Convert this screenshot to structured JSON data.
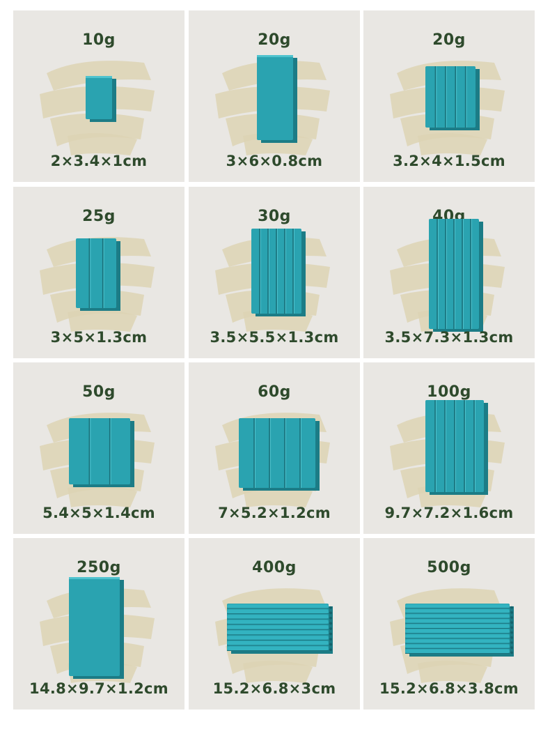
{
  "accent_color": "#2aa3b0",
  "text_color": "#2e4a2c",
  "products": [
    {
      "weight": "10g",
      "dimensions": "2×3.4×1cm",
      "shape": "small-block"
    },
    {
      "weight": "20g",
      "dimensions": "3×6×0.8cm",
      "shape": "flat-block"
    },
    {
      "weight": "20g",
      "dimensions": "3.2×4×1.5cm",
      "shape": "ribbed-block"
    },
    {
      "weight": "25g",
      "dimensions": "3×5×1.3cm",
      "shape": "ribbed-block"
    },
    {
      "weight": "30g",
      "dimensions": "3.5×5.5×1.3cm",
      "shape": "ribbed-block"
    },
    {
      "weight": "40g",
      "dimensions": "3.5×7.3×1.3cm",
      "shape": "ribbed-block"
    },
    {
      "weight": "50g",
      "dimensions": "5.4×5×1.4cm",
      "shape": "ribbed-block"
    },
    {
      "weight": "60g",
      "dimensions": "7×5.2×1.2cm",
      "shape": "ribbed-block"
    },
    {
      "weight": "100g",
      "dimensions": "9.7×7.2×1.6cm",
      "shape": "ribbed-block"
    },
    {
      "weight": "250g",
      "dimensions": "14.8×9.7×1.2cm",
      "shape": "flat-block"
    },
    {
      "weight": "400g",
      "dimensions": "15.2×6.8×3cm",
      "shape": "stacked-tubes"
    },
    {
      "weight": "500g",
      "dimensions": "15.2×6.8×3.8cm",
      "shape": "stacked-tubes"
    }
  ]
}
